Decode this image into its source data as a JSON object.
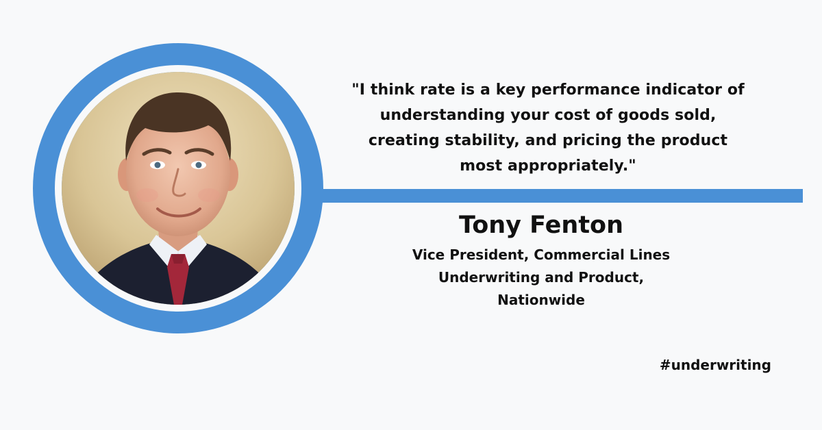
{
  "colors": {
    "background": "#f8f9fa",
    "accent": "#4a90d6",
    "text": "#111111"
  },
  "quote": {
    "text": "\"I think rate is a key performance indicator of\nunderstanding your cost of goods sold,\ncreating stability, and pricing the product\nmost appropriately.\""
  },
  "speaker": {
    "name": "Tony Fenton",
    "title": "Vice President, Commercial Lines\nUnderwriting and Product,\nNationwide"
  },
  "hashtag": "#underwriting",
  "portrait": {
    "subject": "headshot-photo"
  }
}
